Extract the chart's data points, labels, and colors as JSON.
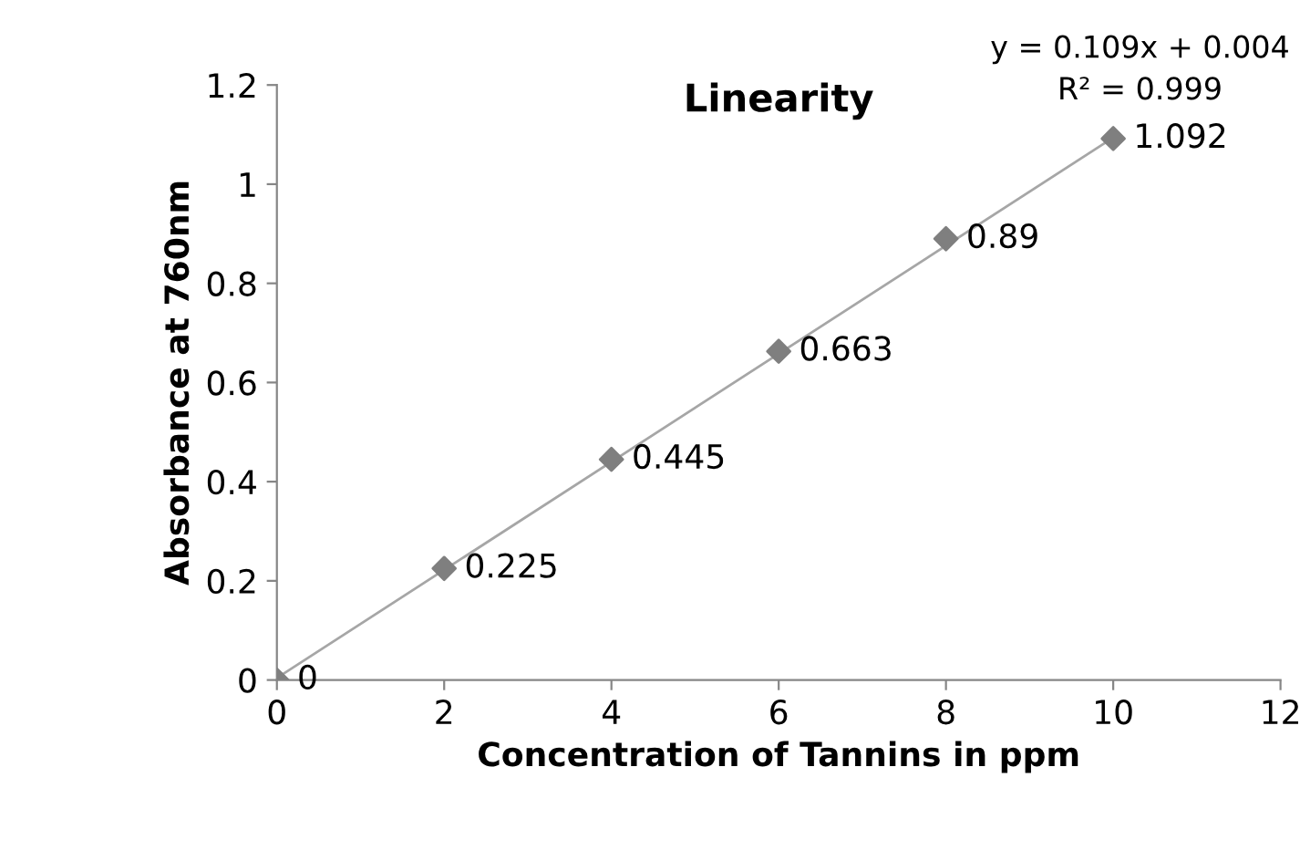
{
  "chart_data": {
    "type": "scatter",
    "title": "Linearity",
    "xlabel": "Concentration of Tannins in ppm",
    "ylabel": "Absorbance at 760nm",
    "x": [
      0,
      2,
      4,
      6,
      8,
      10
    ],
    "series": [
      {
        "color": "#7f7f7f",
        "marker": "diamond",
        "values": [
          0,
          0.225,
          0.445,
          0.663,
          0.89,
          1.092
        ],
        "value_labels": [
          "0",
          "0.225",
          "0.445",
          "0.663",
          "0.89",
          "1.092"
        ]
      },
      {
        "type": "line",
        "color": "#a6a6a6",
        "marker": "none",
        "x": [
          0,
          10
        ],
        "values": [
          0.004,
          1.094
        ]
      }
    ],
    "annotations": [
      "y = 0.109x + 0.004",
      "R² = 0.999"
    ],
    "xlim": [
      0,
      12
    ],
    "xticks": [
      0,
      2,
      4,
      6,
      8,
      10,
      12
    ],
    "ylim": [
      0,
      1.2
    ],
    "yticks": [
      0,
      0.2,
      0.4,
      0.6,
      0.8,
      1,
      1.2
    ],
    "grid": false,
    "legend": false
  }
}
